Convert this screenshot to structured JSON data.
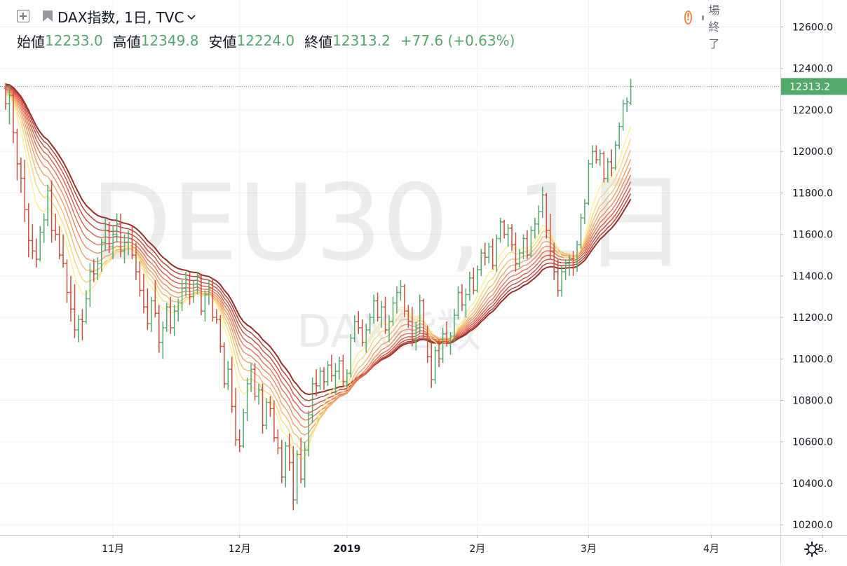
{
  "header": {
    "symbol_title": "DAX指数, 1日, TVC",
    "ohlc": [
      {
        "label": "始値",
        "value": "12233.0"
      },
      {
        "label": "高値",
        "value": "12349.8"
      },
      {
        "label": "安値",
        "value": "12224.0"
      },
      {
        "label": "終値",
        "value": "12313.2"
      }
    ],
    "change": "+77.6 (+0.63%)",
    "market_status": "市場終了"
  },
  "watermark": {
    "line1": "DEU30, 1日",
    "line2": "DAX指数"
  },
  "icons": {
    "add": "plus-square-icon",
    "flag": "flag-icon",
    "chevron": "chevron-down-icon",
    "warning": "exclamation-circle-icon",
    "settings": "gear-icon"
  },
  "colors": {
    "up": "#53a96b",
    "down": "#cf4e3a",
    "price_label_bg": "#53a96b",
    "ribbon": [
      "#fcef8c",
      "#fad57d",
      "#f7b971",
      "#f4a066",
      "#f08a5c",
      "#ea7152",
      "#df5c48",
      "#cf4b3d",
      "#b73a31",
      "#9c2d25"
    ]
  },
  "chart_data": {
    "type": "ohlc",
    "series_type": "ohlc bars with moving-average ribbon",
    "current_price": "12313.2",
    "y_axis": {
      "ticks": [
        "12600.0",
        "12400.0",
        "12200.0",
        "12000.0",
        "11800.0",
        "11600.0",
        "11400.0",
        "11200.0",
        "11000.0",
        "10800.0",
        "10600.0",
        "10400.0",
        "10200.0"
      ],
      "range": [
        10150,
        12730
      ]
    },
    "x_axis": {
      "ticks": [
        {
          "label": "11月",
          "bar": 28
        },
        {
          "label": "12月",
          "bar": 61
        },
        {
          "label": "2019",
          "bar": 89,
          "bold": true
        },
        {
          "label": "2月",
          "bar": 123
        },
        {
          "label": "3月",
          "bar": 152
        },
        {
          "label": "4月",
          "bar": 184
        },
        {
          "label": "5.",
          "bar": 213
        }
      ]
    },
    "bars": [
      [
        12305,
        12330,
        12200,
        12230
      ],
      [
        12230,
        12320,
        12130,
        12270
      ],
      [
        12270,
        12290,
        12040,
        12090
      ],
      [
        12090,
        12110,
        11860,
        11940
      ],
      [
        11940,
        11970,
        11800,
        11870
      ],
      [
        11870,
        11960,
        11660,
        11720
      ],
      [
        11720,
        11750,
        11490,
        11570
      ],
      [
        11570,
        11650,
        11480,
        11520
      ],
      [
        11520,
        11580,
        11440,
        11480
      ],
      [
        11480,
        11640,
        11470,
        11610
      ],
      [
        11610,
        11700,
        11560,
        11670
      ],
      [
        11670,
        11840,
        11640,
        11810
      ],
      [
        11810,
        11860,
        11560,
        11620
      ],
      [
        11620,
        11700,
        11570,
        11600
      ],
      [
        11600,
        11640,
        11480,
        11500
      ],
      [
        11500,
        11600,
        11440,
        11460
      ],
      [
        11460,
        11480,
        11270,
        11320
      ],
      [
        11320,
        11400,
        11180,
        11240
      ],
      [
        11240,
        11360,
        11100,
        11140
      ],
      [
        11140,
        11210,
        11080,
        11190
      ],
      [
        11190,
        11240,
        11090,
        11180
      ],
      [
        11180,
        11330,
        11170,
        11290
      ],
      [
        11290,
        11460,
        11250,
        11420
      ],
      [
        11420,
        11480,
        11370,
        11410
      ],
      [
        11410,
        11490,
        11380,
        11460
      ],
      [
        11460,
        11580,
        11420,
        11560
      ],
      [
        11560,
        11680,
        11520,
        11620
      ],
      [
        11620,
        11660,
        11510,
        11540
      ],
      [
        11540,
        11640,
        11480,
        11600
      ],
      [
        11600,
        11700,
        11560,
        11650
      ],
      [
        11650,
        11700,
        11490,
        11520
      ],
      [
        11520,
        11600,
        11460,
        11560
      ],
      [
        11560,
        11620,
        11500,
        11580
      ],
      [
        11580,
        11640,
        11480,
        11500
      ],
      [
        11500,
        11560,
        11380,
        11420
      ],
      [
        11420,
        11470,
        11300,
        11330
      ],
      [
        11330,
        11410,
        11220,
        11250
      ],
      [
        11250,
        11340,
        11140,
        11170
      ],
      [
        11170,
        11300,
        11130,
        11280
      ],
      [
        11280,
        11380,
        11200,
        11220
      ],
      [
        11220,
        11260,
        11030,
        11080
      ],
      [
        11080,
        11180,
        11000,
        11150
      ],
      [
        11150,
        11270,
        11130,
        11250
      ],
      [
        11250,
        11300,
        11120,
        11150
      ],
      [
        11150,
        11260,
        11110,
        11230
      ],
      [
        11230,
        11290,
        11180,
        11270
      ],
      [
        11270,
        11380,
        11230,
        11340
      ],
      [
        11340,
        11420,
        11300,
        11380
      ],
      [
        11380,
        11420,
        11260,
        11300
      ],
      [
        11300,
        11380,
        11270,
        11360
      ],
      [
        11360,
        11420,
        11310,
        11400
      ],
      [
        11400,
        11410,
        11210,
        11230
      ],
      [
        11230,
        11330,
        11180,
        11310
      ],
      [
        11310,
        11380,
        11260,
        11340
      ],
      [
        11340,
        11390,
        11180,
        11200
      ],
      [
        11200,
        11240,
        11170,
        11190
      ],
      [
        11190,
        11210,
        11030,
        11060
      ],
      [
        11060,
        11080,
        10860,
        10880
      ],
      [
        10880,
        10990,
        10850,
        10950
      ],
      [
        10950,
        11010,
        10740,
        10770
      ],
      [
        10770,
        10860,
        10580,
        10610
      ],
      [
        10610,
        10660,
        10550,
        10580
      ],
      [
        10580,
        10760,
        10570,
        10740
      ],
      [
        10740,
        10910,
        10700,
        10880
      ],
      [
        10880,
        10980,
        10840,
        10950
      ],
      [
        10950,
        10980,
        10800,
        10820
      ],
      [
        10820,
        10880,
        10780,
        10850
      ],
      [
        10850,
        10880,
        10640,
        10680
      ],
      [
        10680,
        10810,
        10660,
        10790
      ],
      [
        10790,
        10820,
        10720,
        10760
      ],
      [
        10760,
        10800,
        10600,
        10620
      ],
      [
        10620,
        10660,
        10540,
        10570
      ],
      [
        10570,
        10610,
        10400,
        10430
      ],
      [
        10430,
        10600,
        10380,
        10580
      ],
      [
        10580,
        10640,
        10460,
        10500
      ],
      [
        10500,
        10580,
        10270,
        10320
      ],
      [
        10320,
        10560,
        10300,
        10540
      ],
      [
        10540,
        10620,
        10400,
        10420
      ],
      [
        10420,
        10600,
        10380,
        10560
      ],
      [
        10560,
        10750,
        10530,
        10730
      ],
      [
        10730,
        10910,
        10690,
        10880
      ],
      [
        10880,
        10950,
        10820,
        10870
      ],
      [
        10870,
        10960,
        10850,
        10940
      ],
      [
        10940,
        10960,
        10850,
        10890
      ],
      [
        10890,
        10990,
        10870,
        10970
      ],
      [
        10970,
        11020,
        10890,
        10920
      ],
      [
        10920,
        10980,
        10830,
        10940
      ],
      [
        10940,
        11010,
        10900,
        10990
      ],
      [
        10990,
        11020,
        10870,
        10890
      ],
      [
        10890,
        10950,
        10860,
        10930
      ],
      [
        10930,
        11120,
        10910,
        11100
      ],
      [
        11100,
        11210,
        11080,
        11180
      ],
      [
        11180,
        11230,
        11120,
        11150
      ],
      [
        11150,
        11190,
        11060,
        11080
      ],
      [
        11080,
        11170,
        11030,
        11140
      ],
      [
        11140,
        11220,
        11120,
        11200
      ],
      [
        11200,
        11310,
        11170,
        11280
      ],
      [
        11280,
        11320,
        11180,
        11200
      ],
      [
        11200,
        11280,
        11150,
        11250
      ],
      [
        11250,
        11300,
        11120,
        11140
      ],
      [
        11140,
        11210,
        11080,
        11180
      ],
      [
        11180,
        11300,
        11160,
        11270
      ],
      [
        11270,
        11350,
        11220,
        11320
      ],
      [
        11320,
        11380,
        11280,
        11350
      ],
      [
        11350,
        11360,
        11200,
        11230
      ],
      [
        11230,
        11260,
        11150,
        11180
      ],
      [
        11180,
        11250,
        11060,
        11090
      ],
      [
        11090,
        11180,
        11040,
        11150
      ],
      [
        11150,
        11310,
        11120,
        11280
      ],
      [
        11280,
        11290,
        11100,
        11120
      ],
      [
        11120,
        11160,
        10980,
        11010
      ],
      [
        11010,
        11080,
        10860,
        10900
      ],
      [
        10900,
        11060,
        10880,
        11040
      ],
      [
        11040,
        11090,
        10960,
        11000
      ],
      [
        11000,
        11150,
        10980,
        11120
      ],
      [
        11120,
        11180,
        11060,
        11080
      ],
      [
        11080,
        11130,
        11020,
        11110
      ],
      [
        11110,
        11240,
        11080,
        11210
      ],
      [
        11210,
        11350,
        11190,
        11320
      ],
      [
        11320,
        11360,
        11230,
        11260
      ],
      [
        11260,
        11340,
        11200,
        11310
      ],
      [
        11310,
        11420,
        11280,
        11390
      ],
      [
        11390,
        11440,
        11310,
        11330
      ],
      [
        11330,
        11450,
        11320,
        11430
      ],
      [
        11430,
        11530,
        11400,
        11510
      ],
      [
        11510,
        11560,
        11450,
        11490
      ],
      [
        11490,
        11560,
        11460,
        11540
      ],
      [
        11540,
        11580,
        11430,
        11450
      ],
      [
        11450,
        11600,
        11420,
        11580
      ],
      [
        11580,
        11680,
        11560,
        11660
      ],
      [
        11660,
        11670,
        11580,
        11600
      ],
      [
        11600,
        11650,
        11540,
        11630
      ],
      [
        11630,
        11650,
        11520,
        11550
      ],
      [
        11550,
        11610,
        11420,
        11460
      ],
      [
        11460,
        11530,
        11440,
        11510
      ],
      [
        11510,
        11600,
        11480,
        11580
      ],
      [
        11580,
        11620,
        11480,
        11500
      ],
      [
        11500,
        11640,
        11490,
        11620
      ],
      [
        11620,
        11680,
        11580,
        11650
      ],
      [
        11650,
        11740,
        11600,
        11710
      ],
      [
        11710,
        11830,
        11680,
        11790
      ],
      [
        11790,
        11800,
        11580,
        11620
      ],
      [
        11620,
        11700,
        11480,
        11520
      ],
      [
        11520,
        11560,
        11380,
        11420
      ],
      [
        11420,
        11480,
        11300,
        11330
      ],
      [
        11330,
        11450,
        11300,
        11420
      ],
      [
        11420,
        11480,
        11380,
        11460
      ],
      [
        11460,
        11500,
        11400,
        11480
      ],
      [
        11480,
        11520,
        11400,
        11440
      ],
      [
        11440,
        11570,
        11420,
        11550
      ],
      [
        11550,
        11700,
        11530,
        11680
      ],
      [
        11680,
        11770,
        11650,
        11750
      ],
      [
        11750,
        11960,
        11740,
        11940
      ],
      [
        11940,
        12030,
        11920,
        12000
      ],
      [
        12000,
        12030,
        11940,
        11960
      ],
      [
        11960,
        12010,
        11930,
        11990
      ],
      [
        11990,
        12000,
        11850,
        11870
      ],
      [
        11870,
        11970,
        11850,
        11950
      ],
      [
        11950,
        12010,
        11880,
        11920
      ],
      [
        11920,
        12050,
        11910,
        12030
      ],
      [
        12030,
        12140,
        12010,
        12120
      ],
      [
        12120,
        12250,
        12100,
        12230
      ],
      [
        12230,
        12260,
        12190,
        12240
      ],
      [
        12233,
        12349.8,
        12224,
        12313.2
      ]
    ]
  }
}
